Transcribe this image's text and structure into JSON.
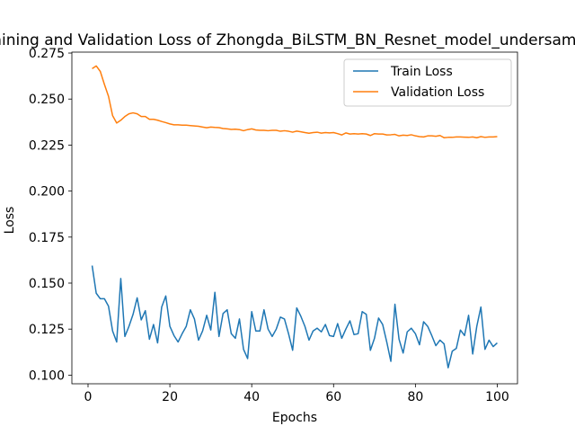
{
  "chart_data": {
    "type": "line",
    "title": "Training and Validation Loss of Zhongda_BiLSTM_BN_Resnet_model_undersampling",
    "xlabel": "Epochs",
    "ylabel": "Loss",
    "xlim": [
      -3.95,
      104.95
    ],
    "ylim": [
      0.0953,
      0.2755
    ],
    "xticks": [
      0,
      20,
      40,
      60,
      80,
      100
    ],
    "yticks": [
      0.1,
      0.125,
      0.15,
      0.175,
      0.2,
      0.225,
      0.25,
      0.275
    ],
    "ytick_labels": [
      "0.100",
      "0.125",
      "0.150",
      "0.175",
      "0.200",
      "0.225",
      "0.250",
      "0.275"
    ],
    "grid": false,
    "legend_position": "upper right",
    "x": [
      1,
      2,
      3,
      4,
      5,
      6,
      7,
      8,
      9,
      10,
      11,
      12,
      13,
      14,
      15,
      16,
      17,
      18,
      19,
      20,
      21,
      22,
      23,
      24,
      25,
      26,
      27,
      28,
      29,
      30,
      31,
      32,
      33,
      34,
      35,
      36,
      37,
      38,
      39,
      40,
      41,
      42,
      43,
      44,
      45,
      46,
      47,
      48,
      49,
      50,
      51,
      52,
      53,
      54,
      55,
      56,
      57,
      58,
      59,
      60,
      61,
      62,
      63,
      64,
      65,
      66,
      67,
      68,
      69,
      70,
      71,
      72,
      73,
      74,
      75,
      76,
      77,
      78,
      79,
      80,
      81,
      82,
      83,
      84,
      85,
      86,
      87,
      88,
      89,
      90,
      91,
      92,
      93,
      94,
      95,
      96,
      97,
      98,
      99,
      100
    ],
    "series": [
      {
        "name": "Train Loss",
        "color": "#1f77b4",
        "values": [
          0.1595,
          0.1445,
          0.1415,
          0.1415,
          0.1375,
          0.124,
          0.118,
          0.1525,
          0.121,
          0.1265,
          0.133,
          0.142,
          0.13,
          0.135,
          0.1195,
          0.1275,
          0.1175,
          0.137,
          0.143,
          0.1265,
          0.1215,
          0.118,
          0.1225,
          0.1265,
          0.1355,
          0.1305,
          0.119,
          0.124,
          0.1325,
          0.1245,
          0.145,
          0.121,
          0.1335,
          0.1355,
          0.1225,
          0.12,
          0.1305,
          0.114,
          0.109,
          0.1345,
          0.124,
          0.124,
          0.1355,
          0.125,
          0.121,
          0.125,
          0.1315,
          0.1305,
          0.1225,
          0.1135,
          0.1365,
          0.132,
          0.1265,
          0.119,
          0.124,
          0.1255,
          0.1235,
          0.1275,
          0.1215,
          0.121,
          0.128,
          0.12,
          0.125,
          0.1295,
          0.122,
          0.1225,
          0.1345,
          0.133,
          0.1135,
          0.12,
          0.131,
          0.1275,
          0.118,
          0.1075,
          0.1385,
          0.1195,
          0.112,
          0.1235,
          0.1255,
          0.1225,
          0.1165,
          0.129,
          0.1265,
          0.1215,
          0.116,
          0.119,
          0.117,
          0.104,
          0.113,
          0.1145,
          0.1245,
          0.1215,
          0.1325,
          0.1115,
          0.1265,
          0.137,
          0.114,
          0.119,
          0.1155,
          0.1175
        ]
      },
      {
        "name": "Validation Loss",
        "color": "#ff7f0e",
        "values": [
          0.2665,
          0.268,
          0.265,
          0.258,
          0.2515,
          0.241,
          0.237,
          0.2385,
          0.2405,
          0.242,
          0.2425,
          0.242,
          0.2405,
          0.2405,
          0.239,
          0.239,
          0.2385,
          0.2378,
          0.2372,
          0.2365,
          0.236,
          0.236,
          0.2358,
          0.2358,
          0.2356,
          0.2354,
          0.2352,
          0.2348,
          0.2344,
          0.2348,
          0.2346,
          0.2345,
          0.234,
          0.2338,
          0.2335,
          0.2336,
          0.2334,
          0.2328,
          0.2334,
          0.2338,
          0.2332,
          0.233,
          0.233,
          0.2328,
          0.233,
          0.233,
          0.2325,
          0.2328,
          0.2325,
          0.232,
          0.2326,
          0.2322,
          0.2318,
          0.2314,
          0.2318,
          0.232,
          0.2315,
          0.2318,
          0.2316,
          0.2318,
          0.2312,
          0.2305,
          0.2316,
          0.231,
          0.2312,
          0.231,
          0.2312,
          0.231,
          0.2302,
          0.2312,
          0.231,
          0.231,
          0.2305,
          0.2306,
          0.2308,
          0.23,
          0.2304,
          0.2302,
          0.2306,
          0.23,
          0.2296,
          0.2294,
          0.23,
          0.23,
          0.2298,
          0.2302,
          0.229,
          0.2292,
          0.2292,
          0.2294,
          0.2294,
          0.2293,
          0.2292,
          0.2294,
          0.229,
          0.2296,
          0.2292,
          0.2294,
          0.2294,
          0.2296
        ]
      }
    ]
  }
}
